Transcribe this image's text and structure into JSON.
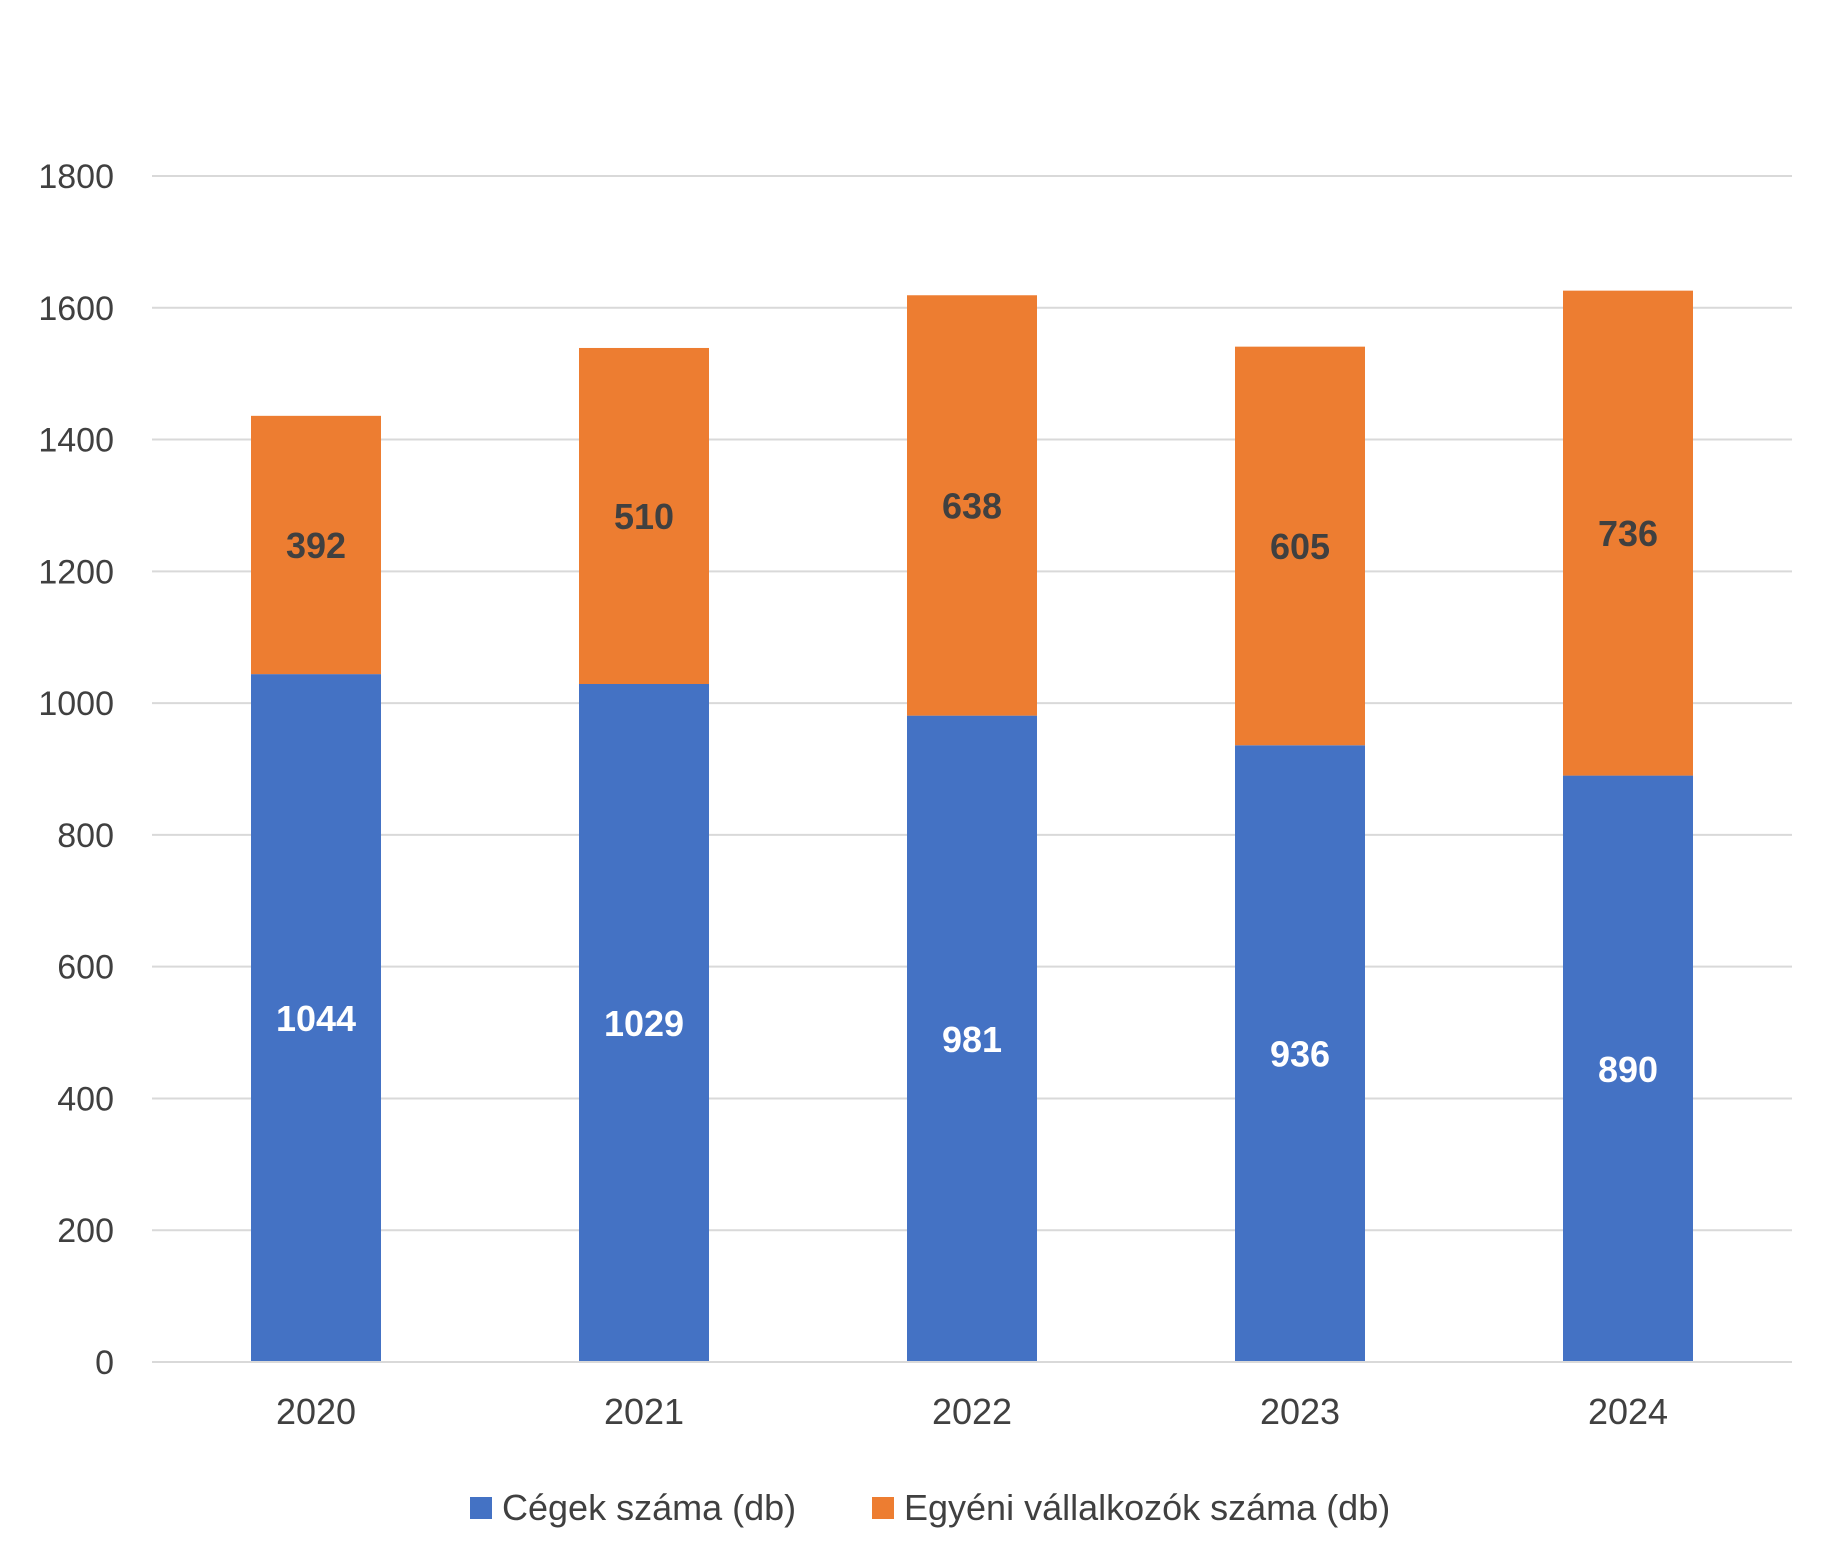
{
  "chart_data": {
    "type": "bar",
    "stacked": true,
    "title": "",
    "xlabel": "",
    "ylabel": "",
    "categories": [
      "2020",
      "2021",
      "2022",
      "2023",
      "2024"
    ],
    "series": [
      {
        "name": "Cégek száma (db)",
        "color": "#4472C4",
        "label_color": "#FFFFFF",
        "values": [
          1044,
          1029,
          981,
          936,
          890
        ]
      },
      {
        "name": "Egyéni vállalkozók száma (db)",
        "color": "#ED7D31",
        "label_color": "#404040",
        "values": [
          392,
          510,
          638,
          605,
          736
        ]
      }
    ],
    "ylim": [
      0,
      1800
    ],
    "yticks": [
      0,
      200,
      400,
      600,
      800,
      1000,
      1200,
      1400,
      1600,
      1800
    ],
    "grid": true,
    "gridline_color": "#D9D9D9",
    "axis_text_color": "#404040",
    "legend_position": "bottom"
  }
}
